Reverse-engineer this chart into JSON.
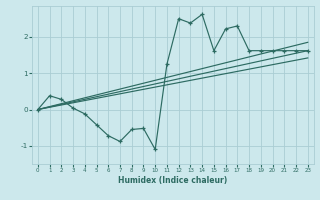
{
  "xlabel": "Humidex (Indice chaleur)",
  "ylabel": "",
  "bg_color": "#cce8ec",
  "grid_color": "#aacdd4",
  "line_color": "#2d6b62",
  "xlim": [
    -0.5,
    23.5
  ],
  "ylim": [
    -1.5,
    2.85
  ],
  "yticks": [
    -1,
    0,
    1,
    2
  ],
  "xticks": [
    0,
    1,
    2,
    3,
    4,
    5,
    6,
    7,
    8,
    9,
    10,
    11,
    12,
    13,
    14,
    15,
    16,
    17,
    18,
    19,
    20,
    21,
    22,
    23
  ],
  "zigzag_x": [
    0,
    1,
    2,
    3,
    4,
    5,
    6,
    7,
    8,
    9,
    10,
    11,
    12,
    13,
    14,
    15,
    16,
    17,
    18,
    19,
    20,
    21,
    22,
    23
  ],
  "zigzag_y": [
    0.0,
    0.38,
    0.28,
    0.04,
    -0.12,
    -0.42,
    -0.72,
    -0.88,
    -0.55,
    -0.52,
    -1.1,
    1.25,
    2.5,
    2.38,
    2.62,
    1.62,
    2.22,
    2.3,
    1.62,
    1.62,
    1.62,
    1.62,
    1.62,
    1.62
  ],
  "line1_x": [
    0,
    23
  ],
  "line1_y": [
    0.0,
    1.85
  ],
  "line2_x": [
    0,
    23
  ],
  "line2_y": [
    0.0,
    1.62
  ],
  "line3_x": [
    0,
    23
  ],
  "line3_y": [
    0.0,
    1.42
  ]
}
